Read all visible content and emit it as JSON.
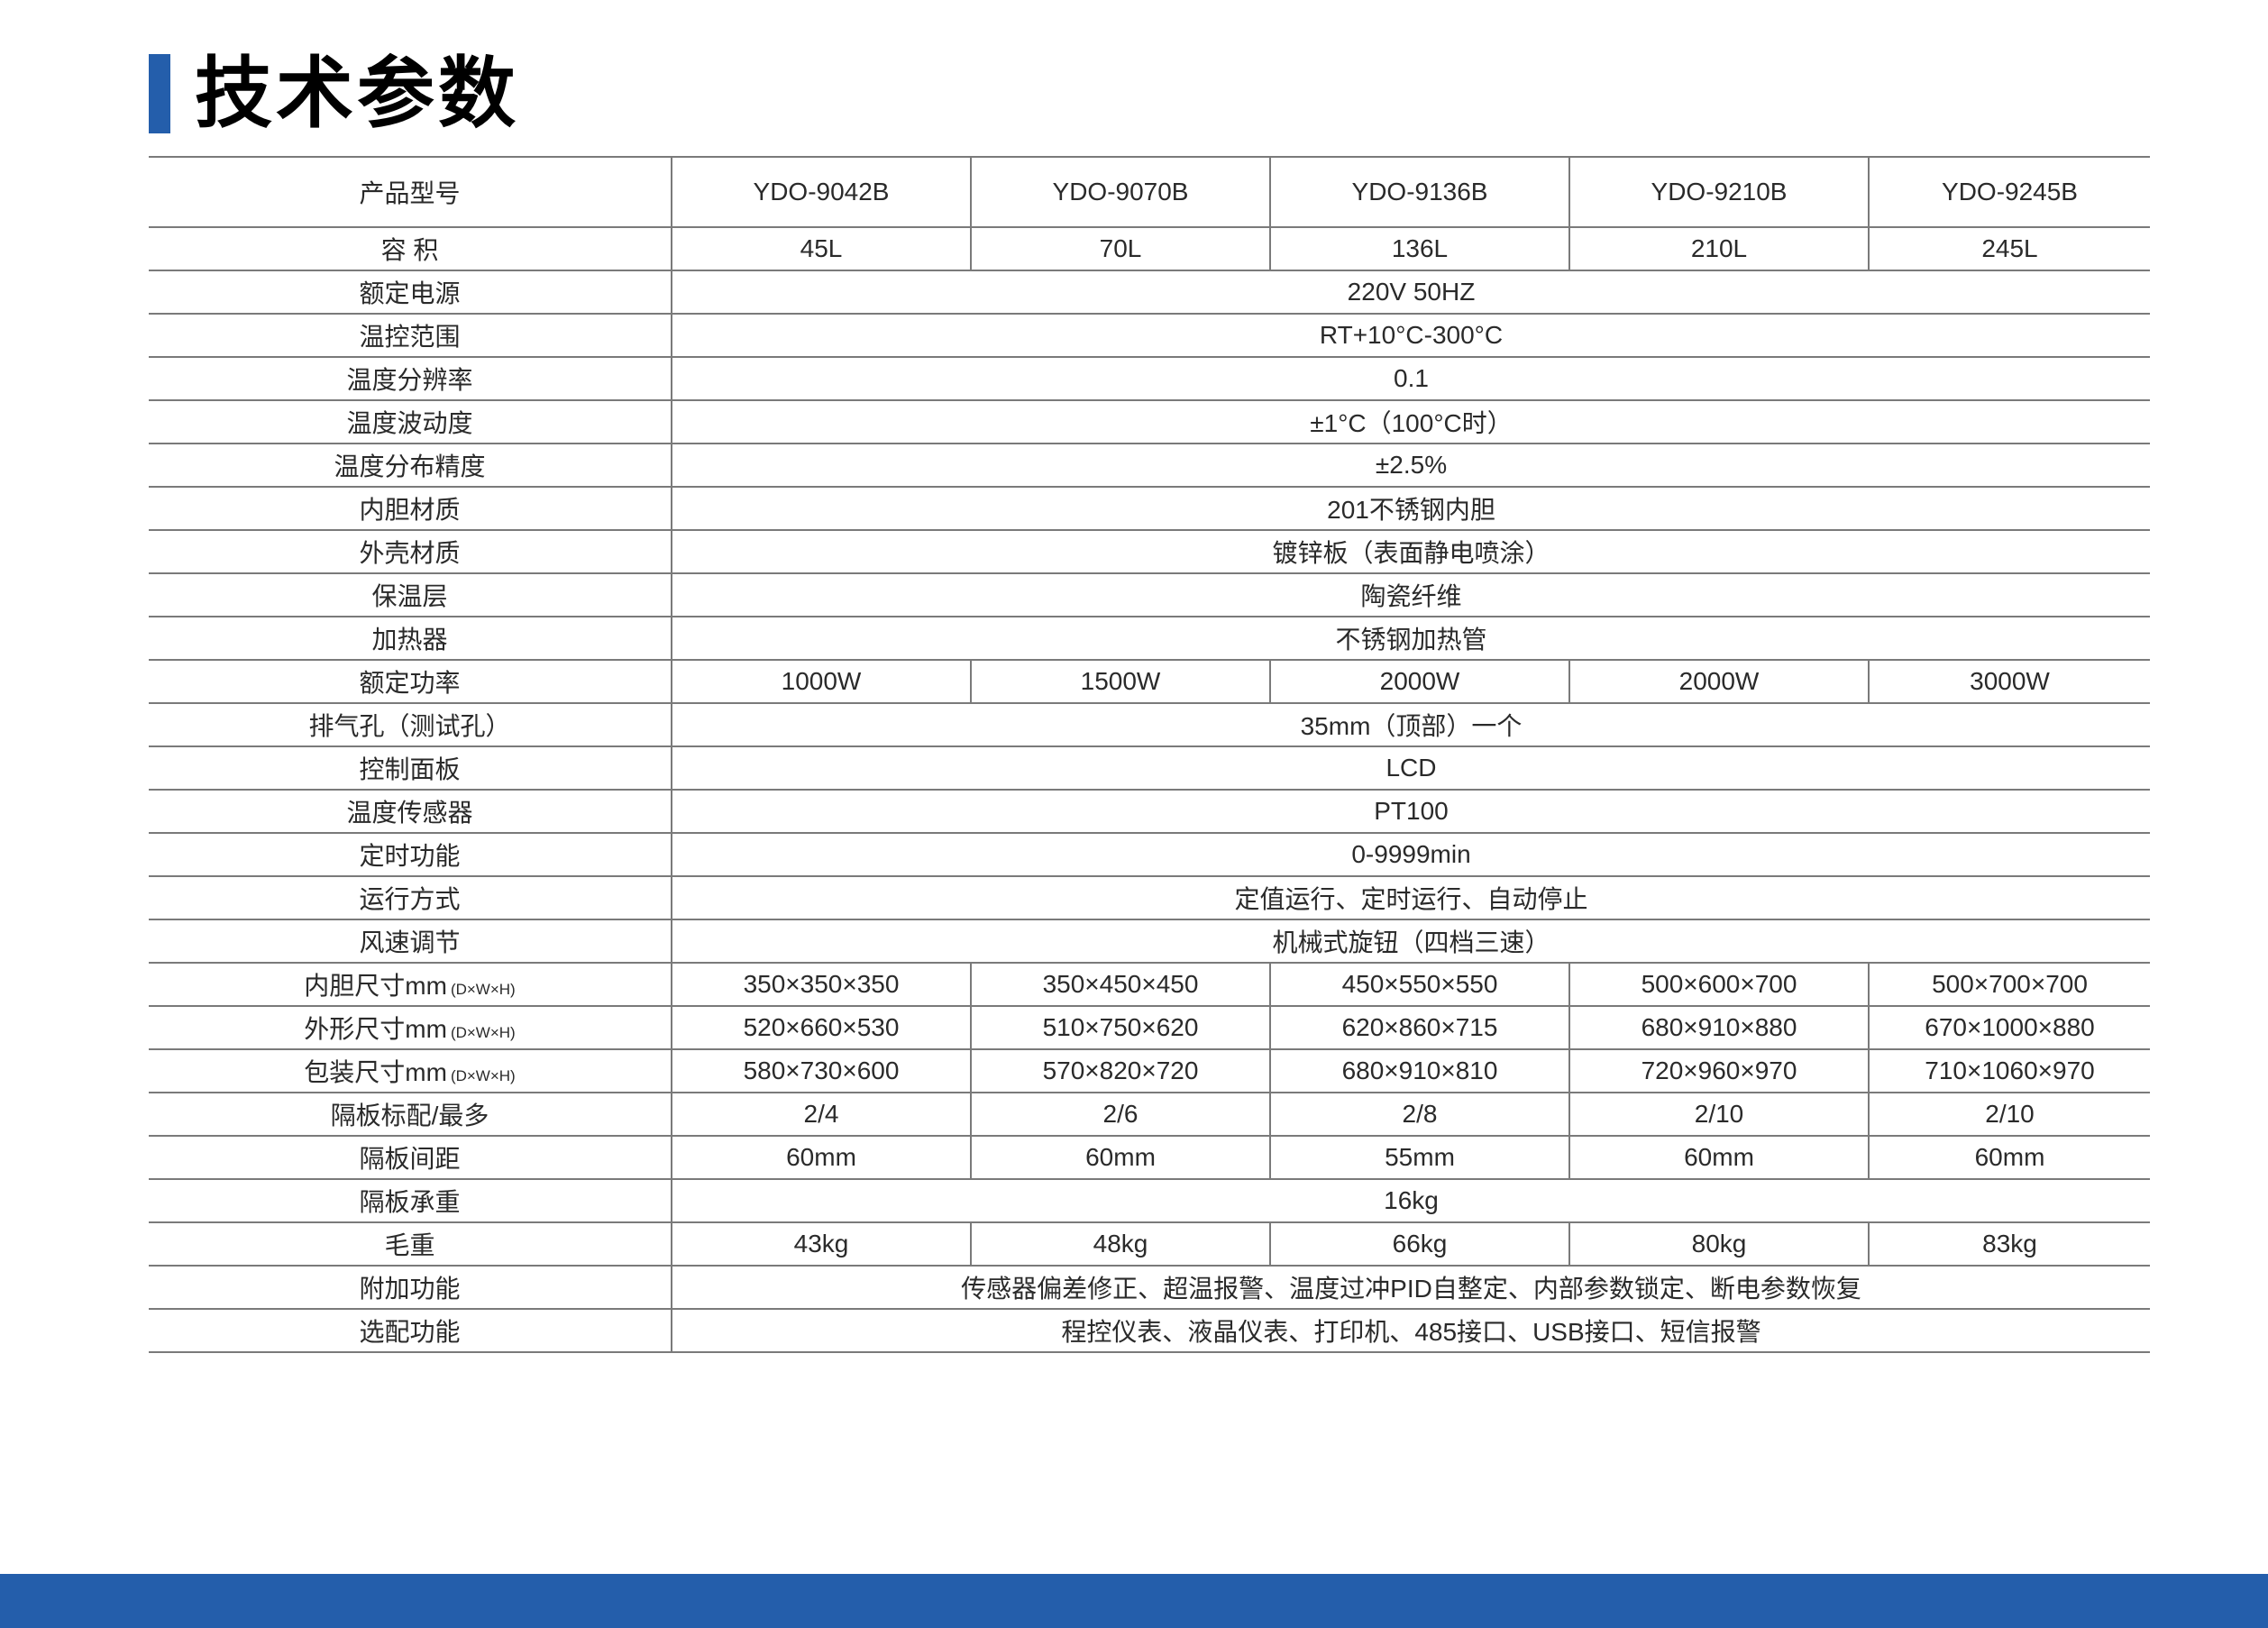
{
  "title": "技术参数",
  "colors": {
    "accent": "#245eab",
    "grid": "#7a7a7a"
  },
  "header": {
    "label": "产品型号",
    "models": [
      "YDO-9042B",
      "YDO-9070B",
      "YDO-9136B",
      "YDO-9210B",
      "YDO-9245B"
    ]
  },
  "rows": [
    {
      "label": "容 积",
      "values": [
        "45L",
        "70L",
        "136L",
        "210L",
        "245L"
      ]
    },
    {
      "label": "额定电源",
      "value": "220V 50HZ"
    },
    {
      "label": "温控范围",
      "value": "RT+10°C-300°C"
    },
    {
      "label": "温度分辨率",
      "value": "0.1"
    },
    {
      "label": "温度波动度",
      "value": "±1°C（100°C时）"
    },
    {
      "label": "温度分布精度",
      "value": "±2.5%"
    },
    {
      "label": "内胆材质",
      "value": "201不锈钢内胆"
    },
    {
      "label": "外壳材质",
      "value": "镀锌板（表面静电喷涂）"
    },
    {
      "label": "保温层",
      "value": "陶瓷纤维"
    },
    {
      "label": "加热器",
      "value": "不锈钢加热管"
    },
    {
      "label": "额定功率",
      "values": [
        "1000W",
        "1500W",
        "2000W",
        "2000W",
        "3000W"
      ]
    },
    {
      "label": "排气孔（测试孔）",
      "value": "35mm（顶部）一个"
    },
    {
      "label": "控制面板",
      "value": "LCD"
    },
    {
      "label": "温度传感器",
      "value": "PT100"
    },
    {
      "label": "定时功能",
      "value": "0-9999min"
    },
    {
      "label": "运行方式",
      "value": "定值运行、定时运行、自动停止"
    },
    {
      "label": "风速调节",
      "value": "机械式旋钮（四档三速）"
    },
    {
      "label": "内胆尺寸mm",
      "suffix": "(D×W×H)",
      "values": [
        "350×350×350",
        "350×450×450",
        "450×550×550",
        "500×600×700",
        "500×700×700"
      ]
    },
    {
      "label": "外形尺寸mm",
      "suffix": "(D×W×H)",
      "values": [
        "520×660×530",
        "510×750×620",
        "620×860×715",
        "680×910×880",
        "670×1000×880"
      ]
    },
    {
      "label": "包装尺寸mm",
      "suffix": "(D×W×H)",
      "values": [
        "580×730×600",
        "570×820×720",
        "680×910×810",
        "720×960×970",
        "710×1060×970"
      ]
    },
    {
      "label": "隔板标配/最多",
      "values": [
        "2/4",
        "2/6",
        "2/8",
        "2/10",
        "2/10"
      ]
    },
    {
      "label": "隔板间距",
      "values": [
        "60mm",
        "60mm",
        "55mm",
        "60mm",
        "60mm"
      ]
    },
    {
      "label": "隔板承重",
      "value": "16kg"
    },
    {
      "label": "毛重",
      "values": [
        "43kg",
        "48kg",
        "66kg",
        "80kg",
        "83kg"
      ]
    },
    {
      "label": "附加功能",
      "value": "传感器偏差修正、超温报警、温度过冲PID自整定、内部参数锁定、断电参数恢复"
    },
    {
      "label": "选配功能",
      "value": "程控仪表、液晶仪表、打印机、485接口、USB接口、短信报警"
    }
  ]
}
